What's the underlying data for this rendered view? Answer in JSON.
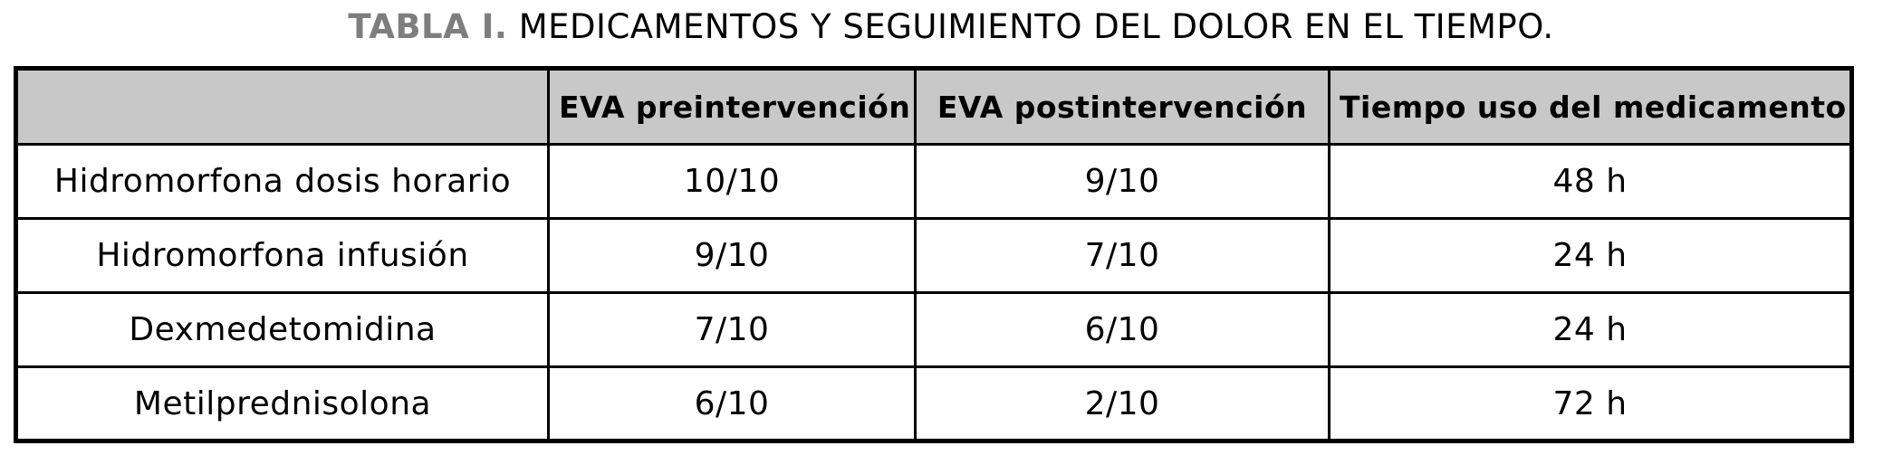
{
  "title": {
    "label": "TABLA I.",
    "text": "MEDICAMENTOS Y SEGUIMIENTO DEL DOLOR EN EL TIEMPO."
  },
  "table": {
    "columns": [
      "",
      "EVA preintervención",
      "EVA postintervención",
      "Tiempo uso del medicamento"
    ],
    "rows": [
      [
        "Hidromorfona dosis horario",
        "10/10",
        "9/10",
        "48 h"
      ],
      [
        "Hidromorfona infusión",
        "9/10",
        "7/10",
        "24 h"
      ],
      [
        "Dexmedetomidina",
        "7/10",
        "6/10",
        "24 h"
      ],
      [
        "Metilprednisolona",
        "6/10",
        "2/10",
        "72 h"
      ]
    ]
  },
  "colors": {
    "title_label": "#7e7e7e",
    "header_background": "#c8c8c8",
    "border": "#000000",
    "text": "#000000",
    "page_background": "#ffffff"
  }
}
